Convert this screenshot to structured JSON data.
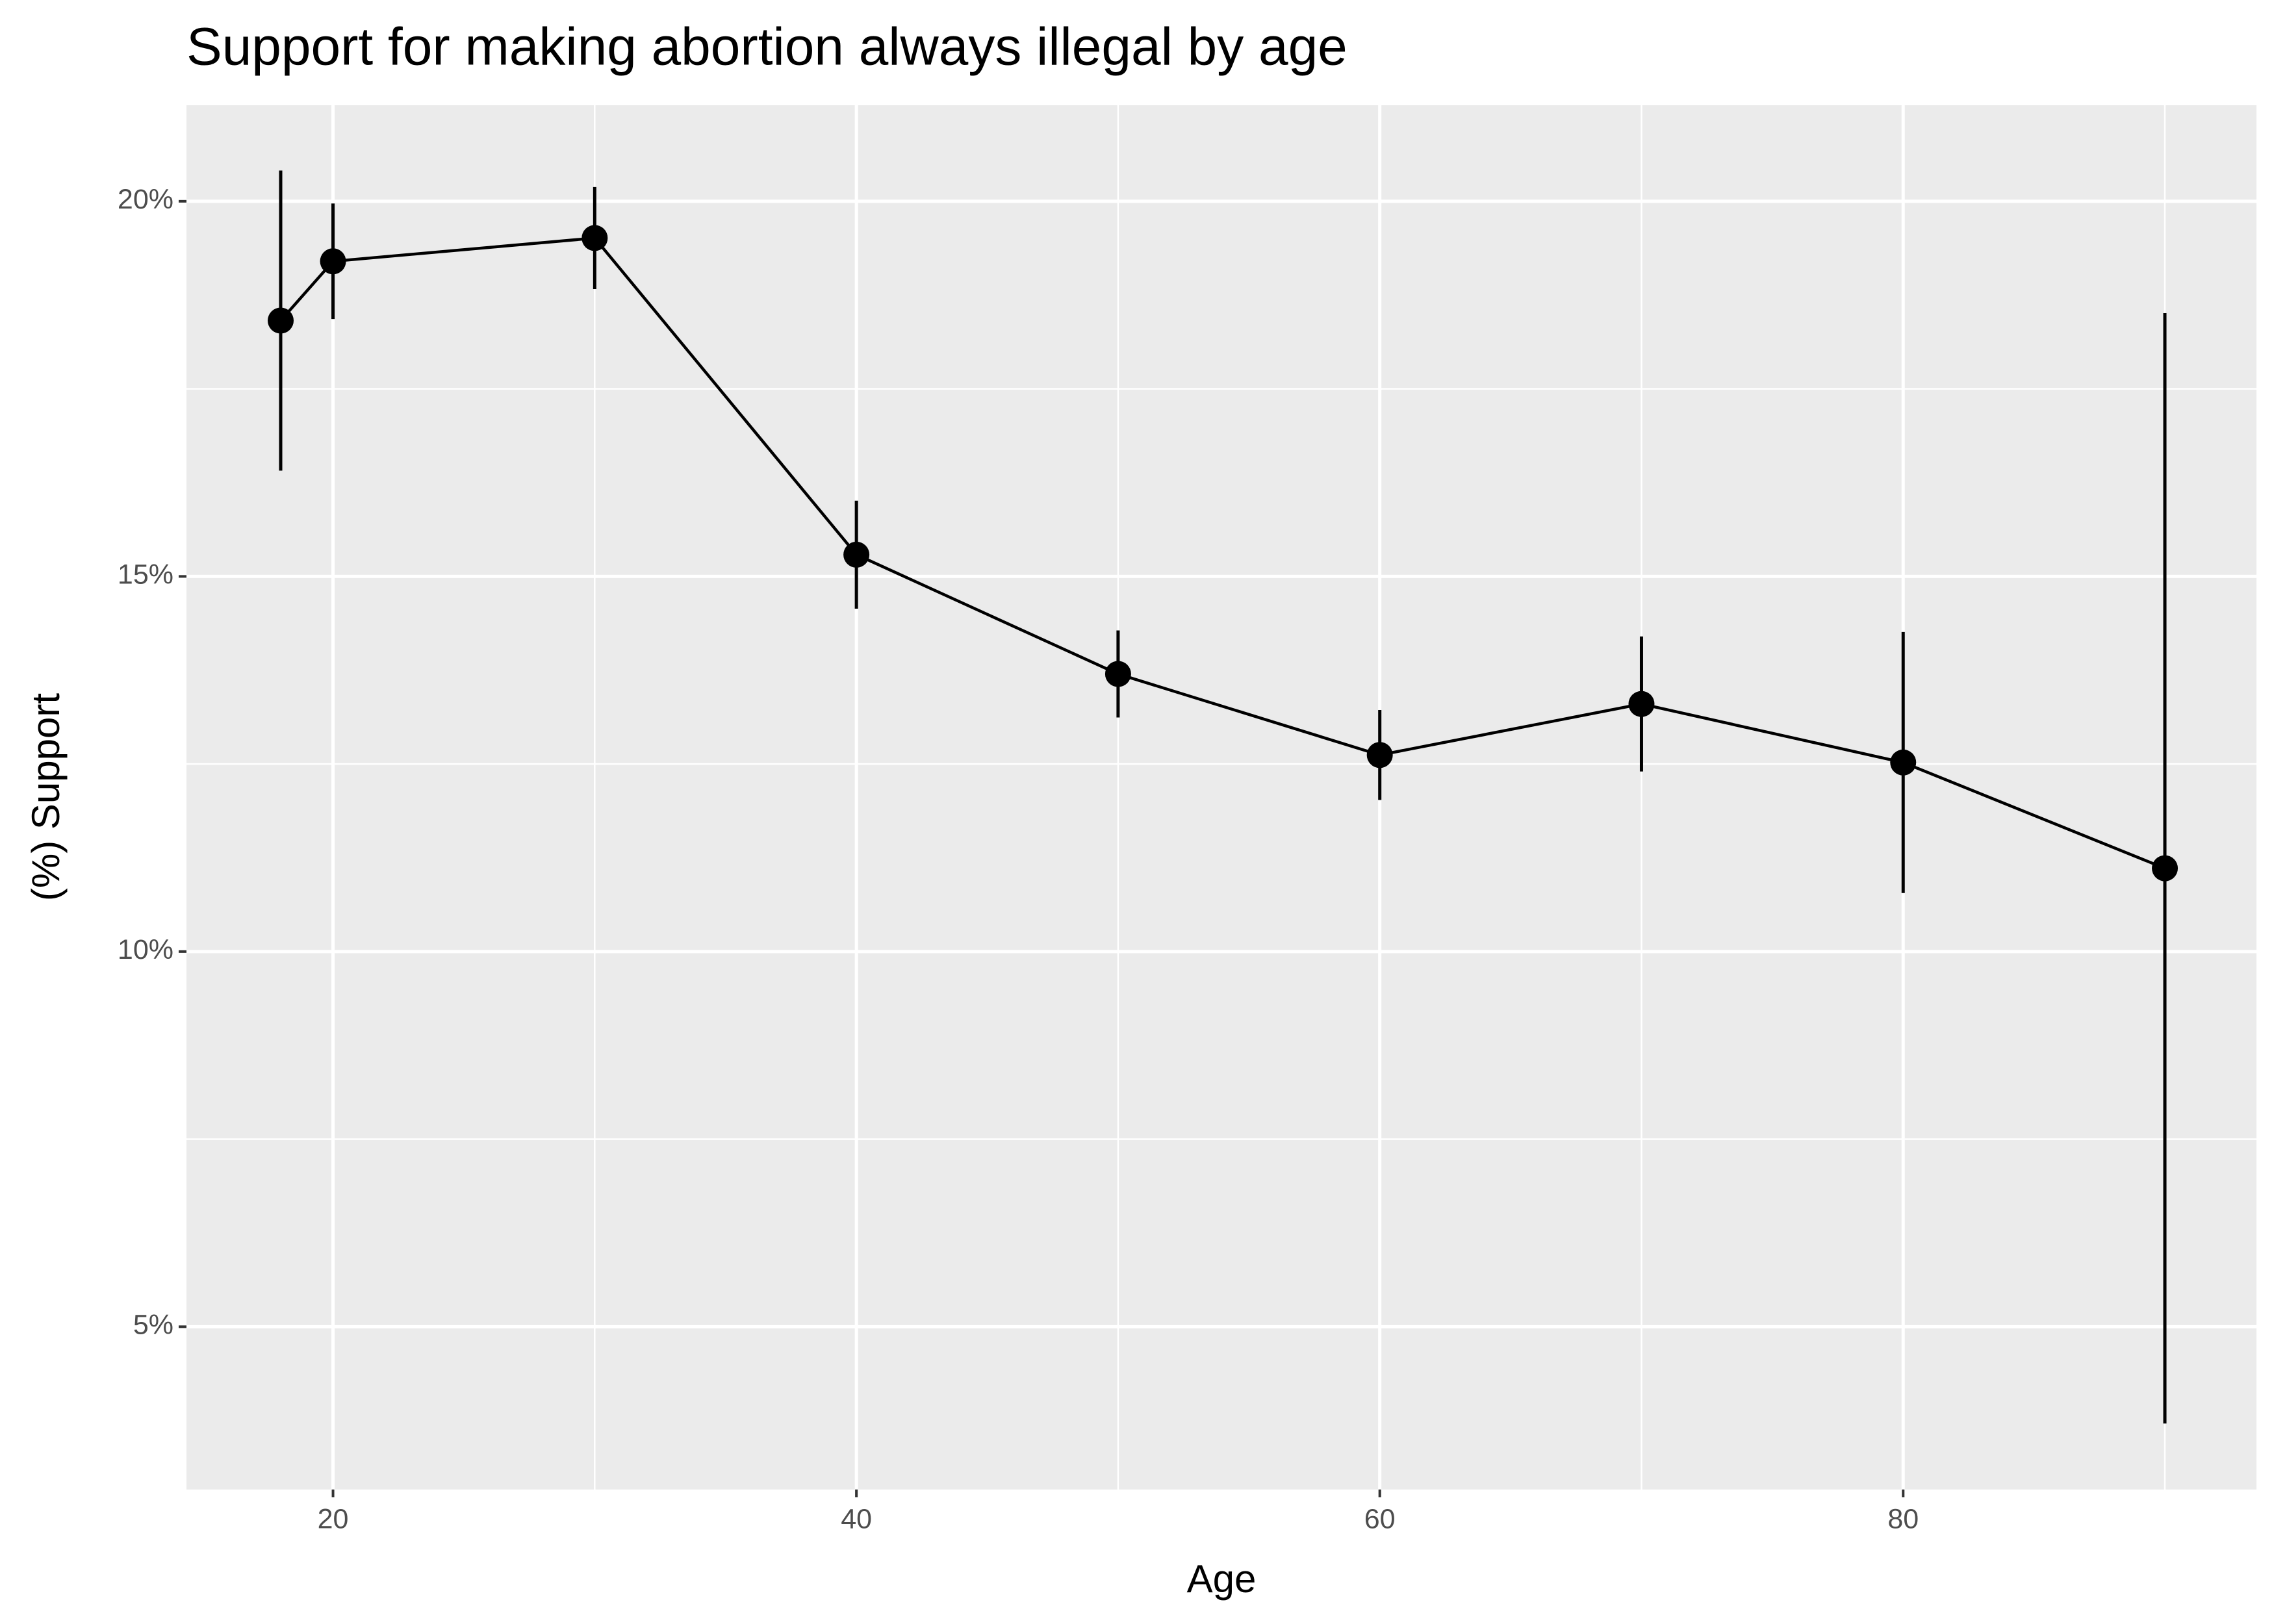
{
  "chart_data": {
    "type": "line",
    "title": "Support for making abortion always illegal by age",
    "x_label": "Age",
    "y_label": "(%) Support",
    "x": [
      18,
      20,
      30,
      40,
      50,
      60,
      70,
      80,
      90
    ],
    "series": [
      {
        "color": "#000000",
        "values": [
          18.41,
          19.2,
          19.51,
          15.29,
          13.7,
          12.62,
          13.3,
          12.52,
          11.11
        ],
        "errors": [
          2.0,
          0.77,
          0.68,
          0.72,
          0.58,
          0.6,
          0.9,
          1.74,
          7.4
        ]
      }
    ],
    "xlim": [
      14.4,
      93.5
    ],
    "xticks": [
      20,
      40,
      60,
      80
    ],
    "x_minor_ticks": [
      30,
      50,
      70,
      90
    ],
    "ylim": [
      2.83,
      21.28
    ],
    "yticks": [
      {
        "value": 5,
        "label": "5%"
      },
      {
        "value": 10,
        "label": "10%"
      },
      {
        "value": 15,
        "label": "15%"
      },
      {
        "value": 20,
        "label": "20%"
      }
    ],
    "y_minor_ticks": [
      7.5,
      12.5,
      17.5
    ],
    "grid": true,
    "panel_color": "#ebebeb"
  }
}
